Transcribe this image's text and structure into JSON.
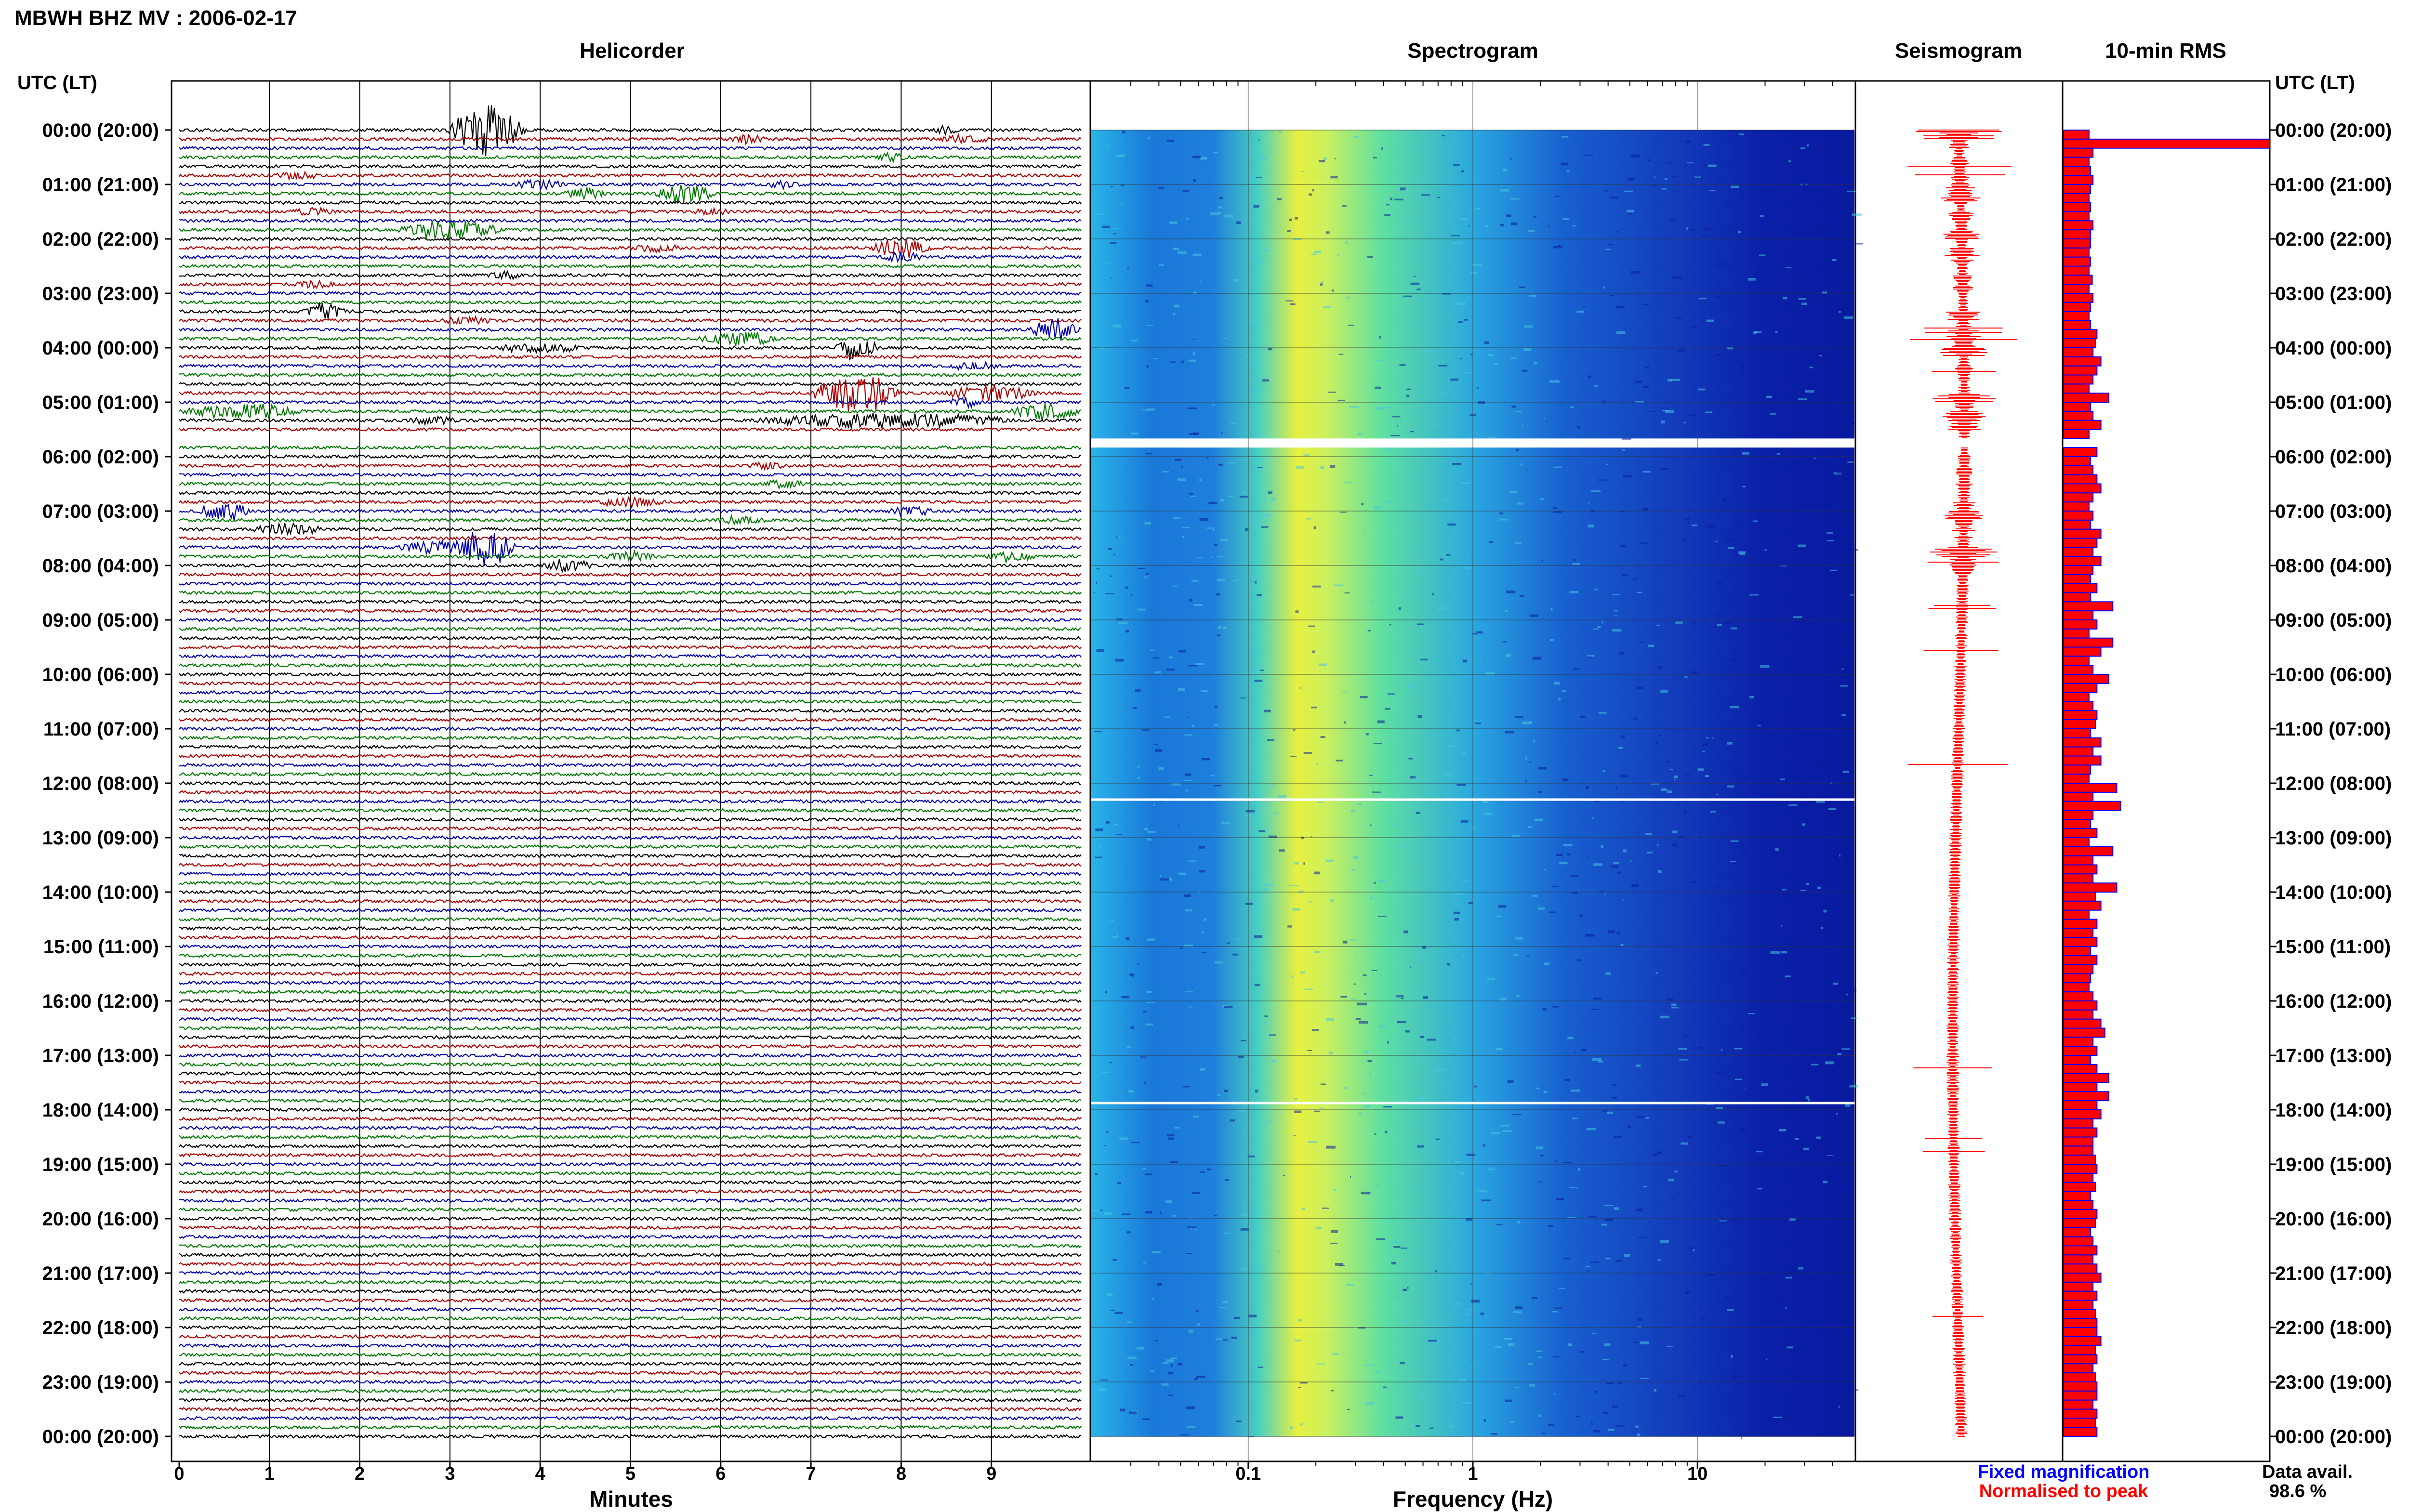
{
  "header": {
    "station_title": "MBWH BHZ MV : 2006-02-17"
  },
  "chart_data": [
    {
      "type": "helicorder",
      "title": "Helicorder",
      "xlabel": "Minutes",
      "x_ticks": [
        "0",
        "1",
        "2",
        "3",
        "4",
        "5",
        "6",
        "7",
        "8",
        "9"
      ],
      "xlim": [
        0,
        10
      ],
      "y_axis_title_left": "UTC (LT)",
      "y_axis_title_right": "UTC (LT)",
      "hour_labels": [
        "00:00 (20:00)",
        "01:00 (21:00)",
        "02:00 (22:00)",
        "03:00 (23:00)",
        "04:00 (00:00)",
        "05:00 (01:00)",
        "06:00 (02:00)",
        "07:00 (03:00)",
        "08:00 (04:00)",
        "09:00 (05:00)",
        "10:00 (06:00)",
        "11:00 (07:00)",
        "12:00 (08:00)",
        "13:00 (09:00)",
        "14:00 (10:00)",
        "15:00 (11:00)",
        "16:00 (12:00)",
        "17:00 (13:00)",
        "18:00 (14:00)",
        "19:00 (15:00)",
        "20:00 (16:00)",
        "21:00 (17:00)",
        "22:00 (18:00)",
        "23:00 (19:00)",
        "00:00 (20:00)"
      ],
      "lines_per_hour": 6,
      "line_colors": [
        "#000000",
        "#b00000",
        "#0000b0",
        "#007a00"
      ],
      "events": [
        {
          "row": 0,
          "minute": 3.4,
          "amp": 3.0,
          "width": 0.9
        },
        {
          "row": 0,
          "minute": 8.5,
          "amp": 0.4,
          "width": 0.3
        },
        {
          "row": 1,
          "minute": 6.3,
          "amp": 0.5,
          "width": 0.4
        },
        {
          "row": 1,
          "minute": 8.7,
          "amp": 0.4,
          "width": 0.6
        },
        {
          "row": 3,
          "minute": 7.9,
          "amp": 0.4,
          "width": 0.4
        },
        {
          "row": 5,
          "minute": 1.3,
          "amp": 0.4,
          "width": 0.5
        },
        {
          "row": 6,
          "minute": 4.0,
          "amp": 0.5,
          "width": 0.6
        },
        {
          "row": 6,
          "minute": 6.7,
          "amp": 0.4,
          "width": 0.4
        },
        {
          "row": 7,
          "minute": 4.5,
          "amp": 0.6,
          "width": 0.5
        },
        {
          "row": 7,
          "minute": 5.6,
          "amp": 1.0,
          "width": 0.7
        },
        {
          "row": 9,
          "minute": 1.5,
          "amp": 0.4,
          "width": 0.5
        },
        {
          "row": 9,
          "minute": 5.9,
          "amp": 0.3,
          "width": 0.4
        },
        {
          "row": 11,
          "minute": 3.0,
          "amp": 1.1,
          "width": 1.2
        },
        {
          "row": 13,
          "minute": 8.0,
          "amp": 1.1,
          "width": 0.7
        },
        {
          "row": 13,
          "minute": 5.3,
          "amp": 0.4,
          "width": 0.6
        },
        {
          "row": 14,
          "minute": 8.0,
          "amp": 0.5,
          "width": 0.5
        },
        {
          "row": 16,
          "minute": 3.6,
          "amp": 0.4,
          "width": 0.4
        },
        {
          "row": 17,
          "minute": 1.5,
          "amp": 0.4,
          "width": 0.5
        },
        {
          "row": 20,
          "minute": 1.6,
          "amp": 1.0,
          "width": 0.5
        },
        {
          "row": 21,
          "minute": 3.2,
          "amp": 0.4,
          "width": 0.6
        },
        {
          "row": 22,
          "minute": 9.7,
          "amp": 1.2,
          "width": 0.6
        },
        {
          "row": 23,
          "minute": 6.2,
          "amp": 0.8,
          "width": 0.9
        },
        {
          "row": 24,
          "minute": 4.0,
          "amp": 0.5,
          "width": 1.0
        },
        {
          "row": 24,
          "minute": 7.5,
          "amp": 1.5,
          "width": 0.5
        },
        {
          "row": 26,
          "minute": 8.8,
          "amp": 0.4,
          "width": 0.6
        },
        {
          "row": 29,
          "minute": 7.5,
          "amp": 2.5,
          "width": 1.0
        },
        {
          "row": 29,
          "minute": 9.0,
          "amp": 0.8,
          "width": 1.1
        },
        {
          "row": 30,
          "minute": 8.7,
          "amp": 0.5,
          "width": 0.4
        },
        {
          "row": 31,
          "minute": 0.7,
          "amp": 0.8,
          "width": 1.4
        },
        {
          "row": 31,
          "minute": 9.6,
          "amp": 1.0,
          "width": 0.8
        },
        {
          "row": 32,
          "minute": 7.8,
          "amp": 0.8,
          "width": 3.0
        },
        {
          "row": 32,
          "minute": 2.8,
          "amp": 0.4,
          "width": 0.6
        },
        {
          "row": 34,
          "minute": 8.7,
          "amp": 0.4,
          "width": 0.5
        },
        {
          "row": 37,
          "minute": 6.5,
          "amp": 0.4,
          "width": 0.4
        },
        {
          "row": 39,
          "minute": 6.7,
          "amp": 0.4,
          "width": 0.5
        },
        {
          "row": 41,
          "minute": 5.0,
          "amp": 0.5,
          "width": 0.8
        },
        {
          "row": 42,
          "minute": 0.5,
          "amp": 1.1,
          "width": 0.6
        },
        {
          "row": 42,
          "minute": 8.1,
          "amp": 0.5,
          "width": 0.5
        },
        {
          "row": 43,
          "minute": 6.2,
          "amp": 0.4,
          "width": 0.6
        },
        {
          "row": 44,
          "minute": 1.2,
          "amp": 0.6,
          "width": 0.8
        },
        {
          "row": 46,
          "minute": 2.8,
          "amp": 0.7,
          "width": 0.8
        },
        {
          "row": 46,
          "minute": 3.4,
          "amp": 2.2,
          "width": 0.7
        },
        {
          "row": 47,
          "minute": 5.0,
          "amp": 0.5,
          "width": 0.6
        },
        {
          "row": 47,
          "minute": 9.2,
          "amp": 0.5,
          "width": 0.6
        },
        {
          "row": 48,
          "minute": 4.3,
          "amp": 0.6,
          "width": 0.6
        }
      ],
      "data_gaps_rows": [
        34
      ]
    },
    {
      "type": "heatmap",
      "title": "Spectrogram",
      "xlabel": "Frequency (Hz)",
      "x_scale": "log",
      "xlim": [
        0.02,
        50
      ],
      "x_ticks": [
        "0.1",
        "1",
        "10"
      ],
      "peak_band_hz": [
        0.18,
        0.35
      ],
      "colormap": "jet"
    },
    {
      "type": "line",
      "title": "Seismogram",
      "color": "#ff0000"
    },
    {
      "type": "bar",
      "title": "10-min RMS",
      "orientation": "horizontal",
      "values": [
        0.2,
        2.6,
        0.25,
        0.2,
        0.22,
        0.25,
        0.22,
        0.2,
        0.22,
        0.2,
        0.25,
        0.22,
        0.22,
        0.2,
        0.22,
        0.2,
        0.24,
        0.2,
        0.25,
        0.22,
        0.2,
        0.22,
        0.3,
        0.28,
        0.25,
        0.35,
        0.3,
        0.25,
        0.2,
        0.45,
        0.22,
        0.25,
        0.35,
        0.2,
        0.22,
        0.3,
        0.22,
        0.25,
        0.3,
        0.35,
        0.25,
        0.2,
        0.25,
        0.22,
        0.35,
        0.3,
        0.25,
        0.35,
        0.25,
        0.22,
        0.3,
        0.22,
        0.5,
        0.25,
        0.3,
        0.2,
        0.5,
        0.35,
        0.2,
        0.25,
        0.45,
        0.3,
        0.2,
        0.25,
        0.3,
        0.28,
        0.22,
        0.35,
        0.25,
        0.35,
        0.22,
        0.2,
        0.55,
        0.25,
        0.6,
        0.25,
        0.22,
        0.3,
        0.2,
        0.5,
        0.25,
        0.3,
        0.25,
        0.55,
        0.28,
        0.35,
        0.2,
        0.3,
        0.25,
        0.3,
        0.22,
        0.3,
        0.25,
        0.22,
        0.2,
        0.25,
        0.3,
        0.25,
        0.35,
        0.4,
        0.25,
        0.3,
        0.22,
        0.3,
        0.45,
        0.3,
        0.45,
        0.3,
        0.35,
        0.25,
        0.3,
        0.25,
        0.25,
        0.28,
        0.3,
        0.25,
        0.28,
        0.22,
        0.25,
        0.3,
        0.28,
        0.22,
        0.25,
        0.3,
        0.25,
        0.3,
        0.35,
        0.25,
        0.3,
        0.25,
        0.28,
        0.3,
        0.3,
        0.35,
        0.28,
        0.3,
        0.25,
        0.28,
        0.3,
        0.3,
        0.25,
        0.3,
        0.28,
        0.3,
        0.25,
        0.3,
        0.35,
        0.4,
        0.3,
        0.35,
        0.3,
        0.3,
        0.35,
        0.3,
        0.35,
        0.3,
        0.3,
        0.35,
        0.3,
        0.35,
        0.4,
        0.3,
        0.3,
        0.35,
        0.3,
        0.3,
        0.45,
        0.35,
        0.3,
        0.3,
        0.3,
        0.35,
        0.3,
        0.35,
        0.3,
        0.3,
        0.35,
        0.3,
        0.3,
        0.35,
        0.4,
        0.35,
        0.3,
        0.35,
        0.4,
        0.35,
        0.4,
        0.35,
        0.4,
        0.3,
        0.35,
        0.4,
        0.3,
        0.3,
        0.35,
        0.3,
        0.35,
        0.4,
        0.3,
        0.35
      ],
      "bar_fill": "#ff0000",
      "bar_edge": "#0000ff"
    }
  ],
  "legend": {
    "fixed_label": "Fixed magnification",
    "fixed_color": "#0000ff",
    "normalised_label": "Normalised to peak",
    "normalised_color": "#ff0000"
  },
  "availability": {
    "label": "Data avail.",
    "value": "98.6 %"
  }
}
